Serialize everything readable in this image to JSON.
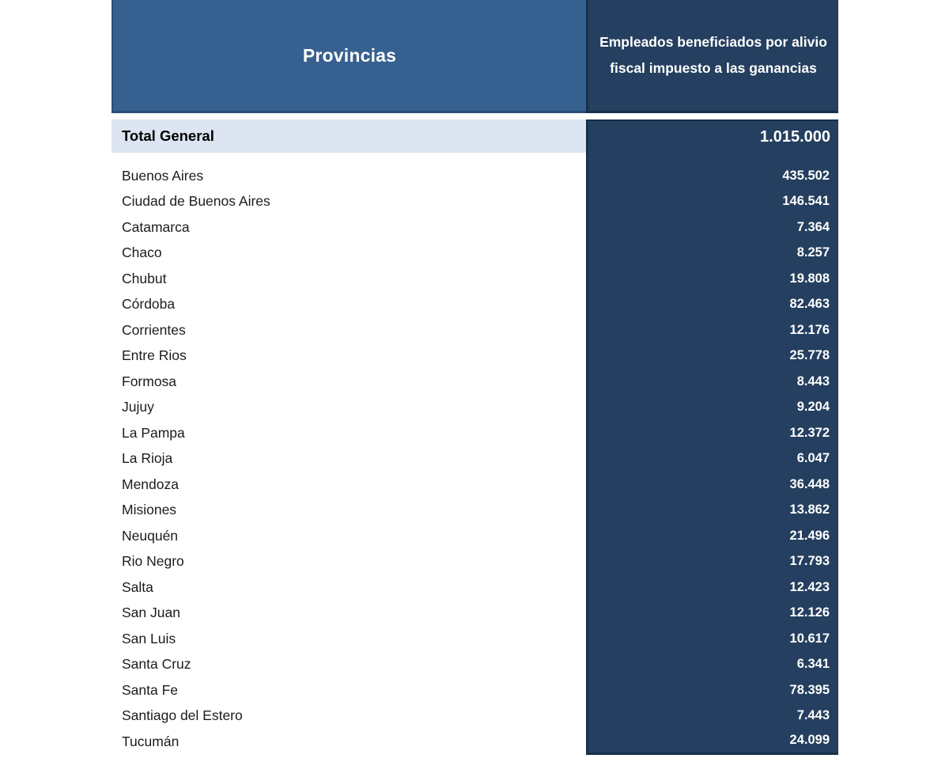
{
  "table": {
    "header": {
      "provinces_label": "Provincias",
      "value_label": "Empleados beneficiados por alivio fiscal impuesto a las ganancias"
    },
    "total": {
      "label": "Total General",
      "value": "1.015.000"
    },
    "rows": [
      {
        "label": "Buenos Aires",
        "value": "435.502"
      },
      {
        "label": "Ciudad de Buenos Aires",
        "value": "146.541"
      },
      {
        "label": "Catamarca",
        "value": "7.364"
      },
      {
        "label": "Chaco",
        "value": "8.257"
      },
      {
        "label": "Chubut",
        "value": "19.808"
      },
      {
        "label": "Córdoba",
        "value": "82.463"
      },
      {
        "label": "Corrientes",
        "value": "12.176"
      },
      {
        "label": "Entre Rios",
        "value": "25.778"
      },
      {
        "label": "Formosa",
        "value": "8.443"
      },
      {
        "label": "Jujuy",
        "value": "9.204"
      },
      {
        "label": "La Pampa",
        "value": "12.372"
      },
      {
        "label": "La Rioja",
        "value": "6.047"
      },
      {
        "label": "Mendoza",
        "value": "36.448"
      },
      {
        "label": "Misiones",
        "value": "13.862"
      },
      {
        "label": "Neuquén",
        "value": "21.496"
      },
      {
        "label": "Rio Negro",
        "value": "17.793"
      },
      {
        "label": "Salta",
        "value": "12.423"
      },
      {
        "label": "San Juan",
        "value": "12.126"
      },
      {
        "label": "San Luis",
        "value": "10.617"
      },
      {
        "label": "Santa Cruz",
        "value": "6.341"
      },
      {
        "label": "Santa Fe",
        "value": "78.395"
      },
      {
        "label": "Santiago del Estero",
        "value": "7.443"
      },
      {
        "label": "Tucumán",
        "value": "24.099"
      }
    ],
    "colors": {
      "header_left_bg": "#36608F",
      "header_right_bg": "#243F5F",
      "value_column_bg": "#243F5F",
      "dark_border": "#16304C",
      "total_row_bg": "#DCE5F1",
      "header_text": "#ffffff",
      "value_text": "#ffffff",
      "label_text": "#1c1c1c"
    }
  },
  "chart_data": {
    "type": "table",
    "title": "Empleados beneficiados por alivio fiscal impuesto a las ganancias",
    "columns": [
      "Provincias",
      "Empleados beneficiados por alivio fiscal impuesto a las ganancias"
    ],
    "total": {
      "label": "Total General",
      "value": 1015000
    },
    "categories": [
      "Buenos Aires",
      "Ciudad de Buenos Aires",
      "Catamarca",
      "Chaco",
      "Chubut",
      "Córdoba",
      "Corrientes",
      "Entre Rios",
      "Formosa",
      "Jujuy",
      "La Pampa",
      "La Rioja",
      "Mendoza",
      "Misiones",
      "Neuquén",
      "Rio Negro",
      "Salta",
      "San Juan",
      "San Luis",
      "Santa Cruz",
      "Santa Fe",
      "Santiago del Estero",
      "Tucumán"
    ],
    "values": [
      435502,
      146541,
      7364,
      8257,
      19808,
      82463,
      12176,
      25778,
      8443,
      9204,
      12372,
      6047,
      36448,
      13862,
      21496,
      17793,
      12423,
      12126,
      10617,
      6341,
      78395,
      7443,
      24099
    ],
    "number_format": "thousands separator '.'"
  }
}
